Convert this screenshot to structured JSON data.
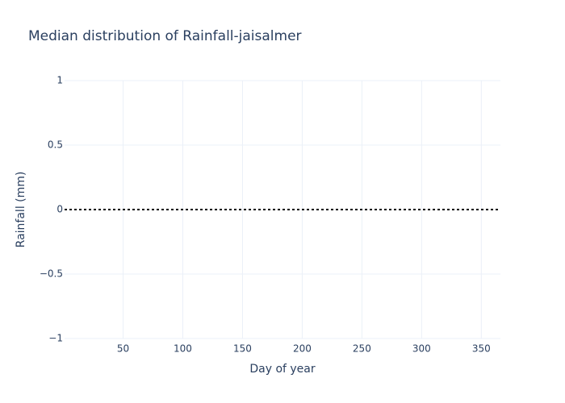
{
  "chart_data": {
    "type": "line",
    "title": "Median distribution of Rainfall-jaisalmer",
    "xlabel": "Day of year",
    "ylabel": "Rainfall (mm)",
    "xlim": [
      1,
      366
    ],
    "ylim": [
      -1,
      1
    ],
    "xticks": [
      50,
      100,
      150,
      200,
      250,
      300,
      350
    ],
    "xtick_labels": [
      "50",
      "100",
      "150",
      "200",
      "250",
      "300",
      "350"
    ],
    "yticks": [
      -1,
      -0.5,
      0,
      0.5,
      1
    ],
    "ytick_labels": [
      "−1",
      "−0.5",
      "0",
      "0.5",
      "1"
    ],
    "grid": true,
    "series": [
      {
        "x": [
          1,
          366
        ],
        "values": [
          0,
          0
        ],
        "color": "#000000",
        "line_style": "dotted"
      }
    ]
  }
}
